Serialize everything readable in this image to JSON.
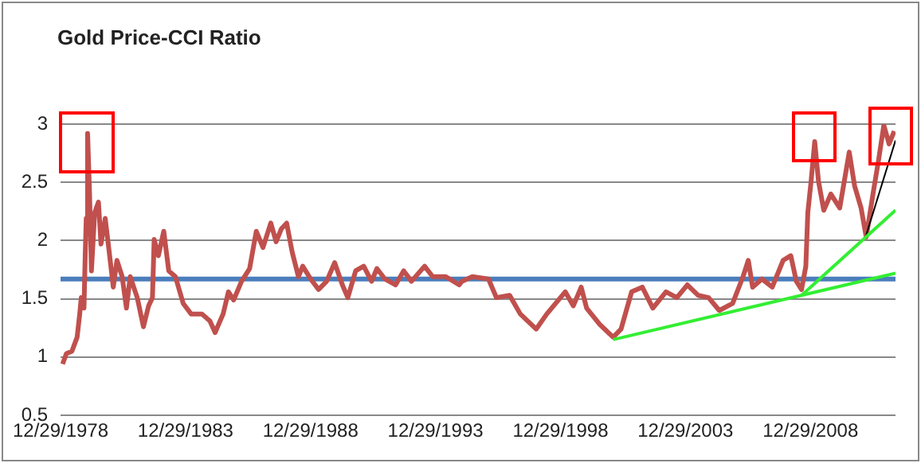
{
  "chart_data": {
    "type": "line",
    "title": "Gold Price-CCI Ratio",
    "xlim": [
      "1978-12-29",
      "2012-05-25"
    ],
    "xticks": [
      {
        "value": "1978-12-29",
        "label": "12/29/1978"
      },
      {
        "value": "1983-12-29",
        "label": "12/29/1983"
      },
      {
        "value": "1988-12-29",
        "label": "12/29/1988"
      },
      {
        "value": "1993-12-29",
        "label": "12/29/1993"
      },
      {
        "value": "1998-12-29",
        "label": "12/29/1998"
      },
      {
        "value": "2003-12-29",
        "label": "12/29/2003"
      },
      {
        "value": "2008-12-29",
        "label": "12/29/2008"
      }
    ],
    "ylim": [
      0.5,
      3
    ],
    "yticks": [
      0.5,
      1,
      1.5,
      2,
      2.5,
      3
    ],
    "grid": "y",
    "legend": false,
    "marker": "none",
    "ref_lines": [
      {
        "axis": "y",
        "value": 1.67,
        "color": "#4a7ebb"
      }
    ],
    "series": [
      {
        "color": "#c0504d",
        "x": [
          "1979-01-28",
          "1979-03-24",
          "1979-06-13",
          "1979-08-28",
          "1979-10-05",
          "1979-10-28",
          "1979-12-06",
          "1979-12-24",
          "1980-01-08",
          "1980-01-28",
          "1980-02-25",
          "1980-03-24",
          "1980-05-11",
          "1980-07-05",
          "1980-08-11",
          "1980-10-12",
          "1980-12-06",
          "1981-02-07",
          "1981-04-01",
          "1981-06-17",
          "1981-08-18",
          "1981-10-12",
          "1982-01-23",
          "1982-04-23",
          "1982-07-08",
          "1982-09-02",
          "1982-09-27",
          "1982-11-28",
          "1983-02-14",
          "1983-04-28",
          "1983-08-03",
          "1983-11-25",
          "1984-03-20",
          "1984-08-25",
          "1984-12-20",
          "1985-03-06",
          "1985-07-01",
          "1985-09-17",
          "1985-12-02",
          "1986-03-27",
          "1986-07-23",
          "1986-10-28",
          "1987-02-03",
          "1987-05-28",
          "1987-08-14",
          "1987-10-28",
          "1988-01-15",
          "1988-04-05",
          "1988-07-05",
          "1988-09-06",
          "1989-01-01",
          "1989-04-26",
          "1989-08-21",
          "1989-12-17",
          "1990-04-08",
          "1990-06-27",
          "1990-10-19",
          "1991-02-14",
          "1991-06-09",
          "1991-08-25",
          "1991-12-20",
          "1992-05-25",
          "1992-09-20",
          "1993-01-12",
          "1993-07-23",
          "1993-11-18",
          "1994-05-28",
          "1994-12-09",
          "1995-01-19",
          "1995-06-20",
          "1996-02-11",
          "1996-06-06",
          "1996-12-17",
          "1997-05-21",
          "1998-01-08",
          "1998-06-13",
          "1999-03-09",
          "1999-07-05",
          "1999-10-28",
          "2000-01-15",
          "2000-07-26",
          "2001-02-07",
          "2001-06-02",
          "2001-11-03",
          "2002-04-08",
          "2002-09-09",
          "2003-03-20",
          "2003-08-25",
          "2004-01-26",
          "2004-07-01",
          "2004-12-02",
          "2005-05-07",
          "2005-11-18",
          "2006-04-19",
          "2006-07-05",
          "2006-09-06",
          "2007-01-19",
          "2007-06-20",
          "2007-11-25",
          "2008-03-17",
          "2008-06-06",
          "2008-08-21",
          "2008-10-23",
          "2008-11-21",
          "2009-01-08",
          "2009-03-02",
          "2009-04-26",
          "2009-07-12",
          "2009-10-23",
          "2010-03-02",
          "2010-07-19",
          "2010-10-05",
          "2011-01-08",
          "2011-03-24",
          "2011-07-01",
          "2011-09-20",
          "2011-12-06",
          "2012-02-21",
          "2012-05-07"
        ],
        "values": [
          0.94,
          1.03,
          1.05,
          1.17,
          1.37,
          1.51,
          1.42,
          1.87,
          2.19,
          2.92,
          2.42,
          1.74,
          2.24,
          2.33,
          1.97,
          2.19,
          1.92,
          1.6,
          1.83,
          1.69,
          1.42,
          1.69,
          1.51,
          1.26,
          1.44,
          1.51,
          2.01,
          1.87,
          2.08,
          1.74,
          1.69,
          1.46,
          1.37,
          1.37,
          1.31,
          1.21,
          1.37,
          1.56,
          1.49,
          1.65,
          1.76,
          2.08,
          1.94,
          2.15,
          1.99,
          2.1,
          2.15,
          1.9,
          1.69,
          1.78,
          1.67,
          1.58,
          1.65,
          1.81,
          1.62,
          1.51,
          1.74,
          1.78,
          1.65,
          1.76,
          1.67,
          1.62,
          1.74,
          1.65,
          1.78,
          1.69,
          1.69,
          1.62,
          1.65,
          1.69,
          1.67,
          1.51,
          1.53,
          1.37,
          1.24,
          1.37,
          1.56,
          1.44,
          1.6,
          1.42,
          1.28,
          1.17,
          1.24,
          1.56,
          1.6,
          1.42,
          1.56,
          1.51,
          1.62,
          1.53,
          1.51,
          1.4,
          1.46,
          1.69,
          1.83,
          1.6,
          1.67,
          1.6,
          1.83,
          1.87,
          1.65,
          1.58,
          1.78,
          2.24,
          2.51,
          2.85,
          2.51,
          2.26,
          2.4,
          2.28,
          2.76,
          2.47,
          2.28,
          2.03,
          2.4,
          2.69,
          2.99,
          2.83,
          2.94
        ]
      },
      {
        "type": "line",
        "color": "#33ee33",
        "x": [
          "2001-02-07",
          "2012-05-25"
        ],
        "values": [
          1.15,
          1.72
        ]
      },
      {
        "type": "line",
        "color": "#33ee33",
        "x": [
          "2008-08-21",
          "2012-05-25"
        ],
        "values": [
          1.53,
          2.26
        ]
      },
      {
        "type": "line",
        "color": "#000000",
        "x": [
          "2011-03-09",
          "2012-05-25"
        ],
        "values": [
          2.02,
          2.86
        ]
      }
    ]
  }
}
